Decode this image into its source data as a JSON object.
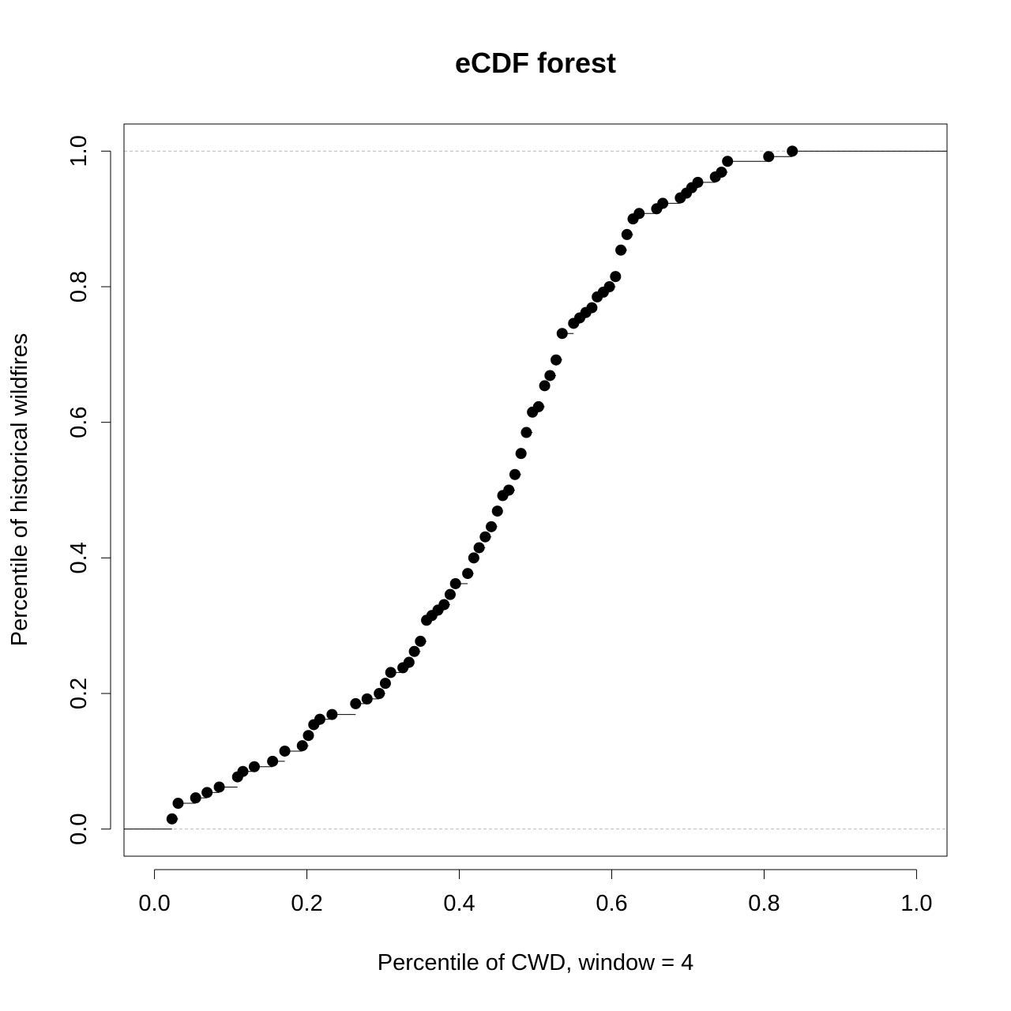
{
  "chart_data": {
    "type": "scatter",
    "title": "eCDF forest",
    "xlabel": "Percentile of CWD, window = 4",
    "ylabel": "Percentile of historical wildfires",
    "xlim": [
      -0.04,
      1.04
    ],
    "ylim": [
      -0.04,
      1.04
    ],
    "x_ticks": [
      "0.0",
      "0.2",
      "0.4",
      "0.6",
      "0.8",
      "1.0"
    ],
    "y_ticks": [
      "0.0",
      "0.2",
      "0.4",
      "0.6",
      "0.8",
      "1.0"
    ],
    "reference_lines_y": [
      0,
      1
    ],
    "grid": false,
    "legend": "none",
    "point_color": "#000000",
    "step_color": "#000000",
    "reference_line_color": "#bbbbbb",
    "points": [
      [
        0.023,
        0.015
      ],
      [
        0.031,
        0.038
      ],
      [
        0.054,
        0.046
      ],
      [
        0.069,
        0.054
      ],
      [
        0.085,
        0.062
      ],
      [
        0.109,
        0.077
      ],
      [
        0.116,
        0.085
      ],
      [
        0.131,
        0.092
      ],
      [
        0.155,
        0.1
      ],
      [
        0.171,
        0.115
      ],
      [
        0.194,
        0.123
      ],
      [
        0.202,
        0.138
      ],
      [
        0.209,
        0.154
      ],
      [
        0.217,
        0.162
      ],
      [
        0.233,
        0.169
      ],
      [
        0.264,
        0.185
      ],
      [
        0.279,
        0.192
      ],
      [
        0.295,
        0.2
      ],
      [
        0.303,
        0.215
      ],
      [
        0.31,
        0.231
      ],
      [
        0.326,
        0.238
      ],
      [
        0.334,
        0.246
      ],
      [
        0.341,
        0.262
      ],
      [
        0.349,
        0.277
      ],
      [
        0.357,
        0.308
      ],
      [
        0.364,
        0.315
      ],
      [
        0.372,
        0.323
      ],
      [
        0.38,
        0.331
      ],
      [
        0.388,
        0.346
      ],
      [
        0.395,
        0.362
      ],
      [
        0.411,
        0.377
      ],
      [
        0.419,
        0.4
      ],
      [
        0.426,
        0.415
      ],
      [
        0.434,
        0.431
      ],
      [
        0.442,
        0.446
      ],
      [
        0.45,
        0.469
      ],
      [
        0.457,
        0.492
      ],
      [
        0.465,
        0.5
      ],
      [
        0.473,
        0.523
      ],
      [
        0.481,
        0.554
      ],
      [
        0.488,
        0.585
      ],
      [
        0.496,
        0.615
      ],
      [
        0.504,
        0.623
      ],
      [
        0.512,
        0.654
      ],
      [
        0.519,
        0.669
      ],
      [
        0.527,
        0.692
      ],
      [
        0.535,
        0.731
      ],
      [
        0.55,
        0.746
      ],
      [
        0.558,
        0.754
      ],
      [
        0.566,
        0.762
      ],
      [
        0.574,
        0.769
      ],
      [
        0.581,
        0.785
      ],
      [
        0.589,
        0.792
      ],
      [
        0.597,
        0.8
      ],
      [
        0.605,
        0.815
      ],
      [
        0.612,
        0.854
      ],
      [
        0.62,
        0.877
      ],
      [
        0.628,
        0.9
      ],
      [
        0.636,
        0.908
      ],
      [
        0.659,
        0.915
      ],
      [
        0.667,
        0.923
      ],
      [
        0.69,
        0.931
      ],
      [
        0.698,
        0.938
      ],
      [
        0.705,
        0.946
      ],
      [
        0.713,
        0.954
      ],
      [
        0.736,
        0.962
      ],
      [
        0.744,
        0.969
      ],
      [
        0.752,
        0.985
      ],
      [
        0.806,
        0.992
      ],
      [
        0.837,
        1.0
      ]
    ]
  }
}
